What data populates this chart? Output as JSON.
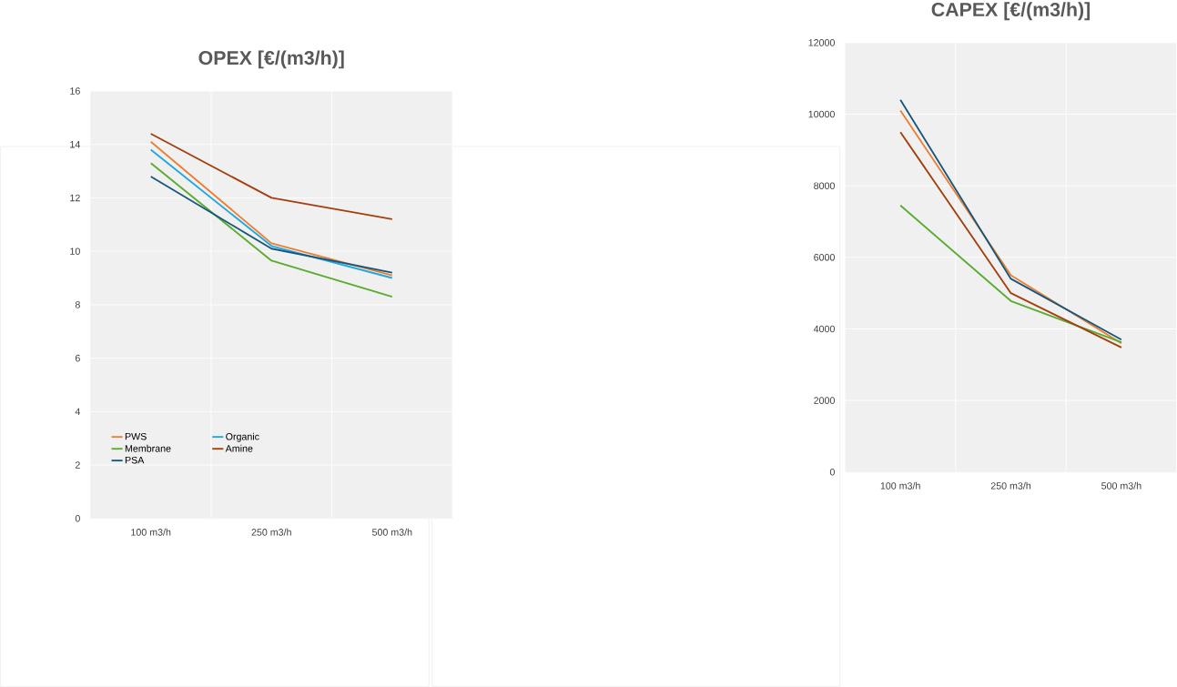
{
  "chart_data": [
    {
      "type": "line",
      "title": "OPEX [€/(m3/h)]",
      "categories": [
        "100 m3/h",
        "250 m3/h",
        "500 m3/h"
      ],
      "ylim": [
        0,
        16
      ],
      "yticks": [
        0,
        2,
        4,
        6,
        8,
        10,
        12,
        14,
        16
      ],
      "grid": true,
      "legend": "bottom left",
      "marker": "none",
      "line_style": "solid",
      "series": [
        {
          "name": "PWS",
          "color": "#ed7d31",
          "values": [
            14.1,
            10.3,
            9.1
          ]
        },
        {
          "name": "Organic",
          "color": "#1ea7e0",
          "values": [
            13.8,
            10.2,
            9.0
          ]
        },
        {
          "name": "Membrane",
          "color": "#5aab2e",
          "values": [
            13.3,
            9.65,
            8.3
          ]
        },
        {
          "name": "Amine",
          "color": "#a33f0c",
          "values": [
            14.4,
            12.0,
            11.2
          ]
        },
        {
          "name": "PSA",
          "color": "#17577a",
          "values": [
            12.8,
            10.1,
            9.2
          ]
        }
      ]
    },
    {
      "type": "line",
      "title": "CAPEX [€/(m3/h)]",
      "categories": [
        "100 m3/h",
        "250 m3/h",
        "500 m3/h"
      ],
      "ylim": [
        0,
        12000
      ],
      "yticks": [
        0,
        2000,
        4000,
        6000,
        8000,
        10000,
        12000
      ],
      "grid": true,
      "marker": "none",
      "line_style": "solid",
      "series": [
        {
          "color": "#ed7d31",
          "values": [
            10100,
            5500,
            3600
          ]
        },
        {
          "color": "#5aab2e",
          "values": [
            7450,
            4780,
            3630
          ]
        },
        {
          "color": "#a33f0c",
          "values": [
            9500,
            5000,
            3480
          ]
        },
        {
          "color": "#17577a",
          "values": [
            10400,
            5400,
            3700
          ]
        }
      ]
    }
  ]
}
